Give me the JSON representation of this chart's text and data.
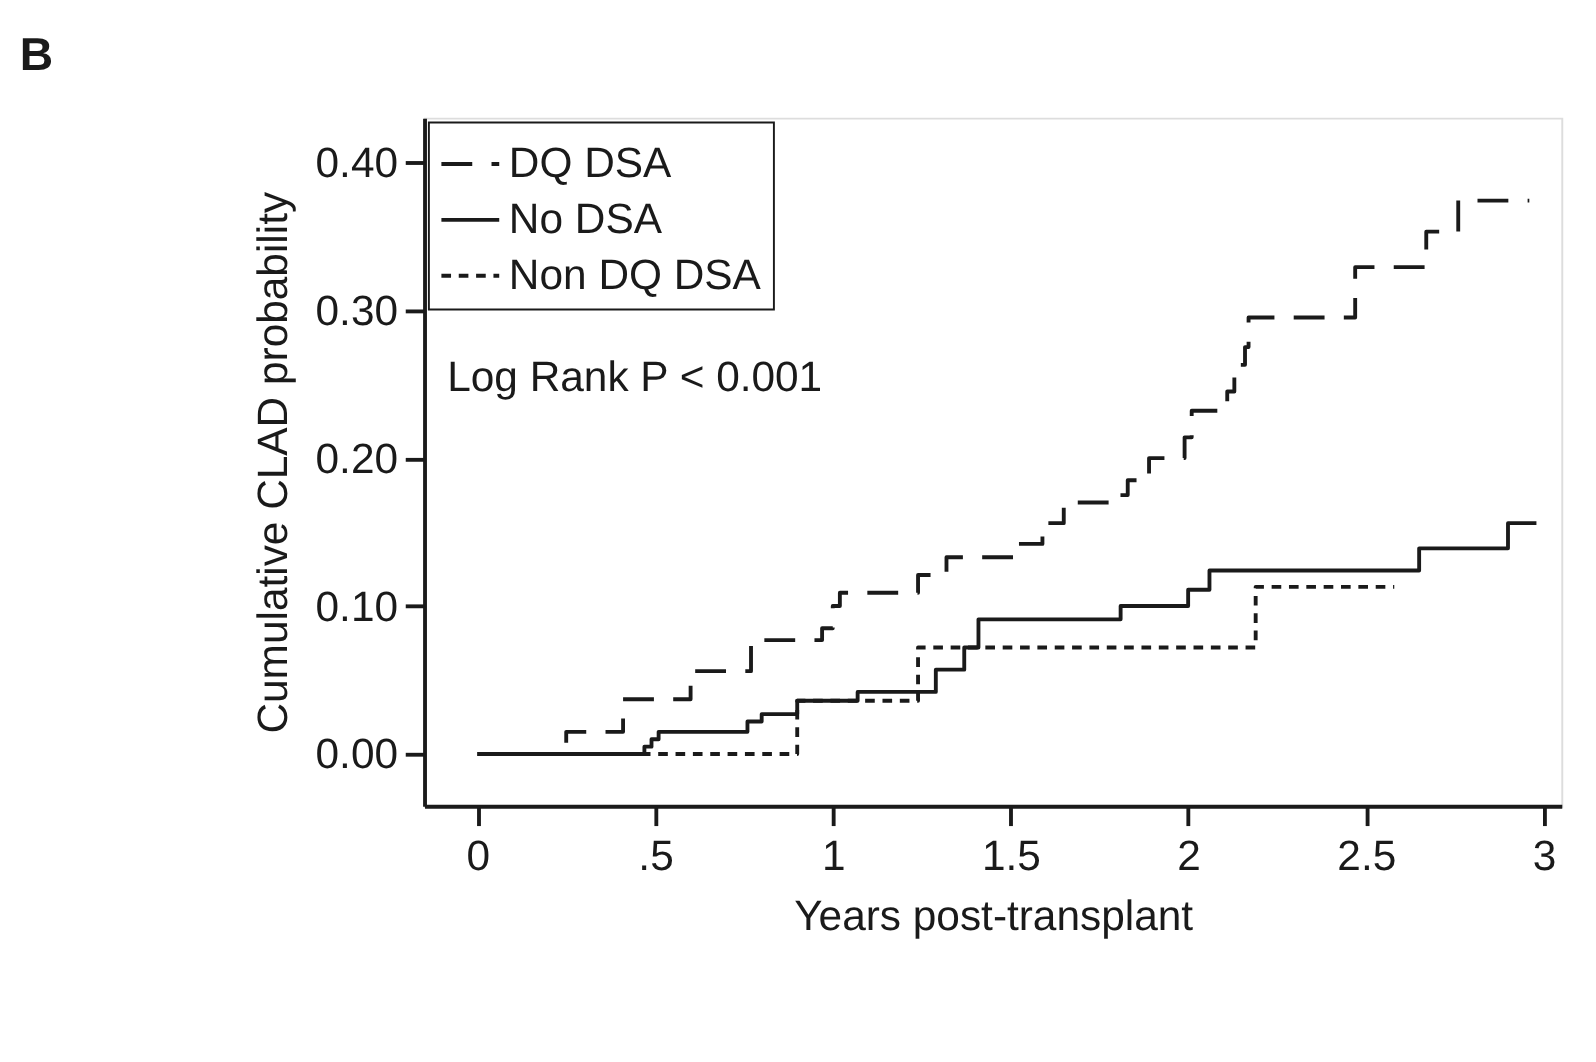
{
  "chart_data": {
    "type": "step",
    "title": "B",
    "xlabel": "Years post-transplant",
    "ylabel": "Cumulative CLAD probability",
    "annotations": [
      "Log Rank P < 0.001"
    ],
    "xlim": [
      -0.15,
      3.05
    ],
    "xticks": [
      0,
      {
        "value": 0.5,
        "label": ".5"
      },
      1,
      1.5,
      2,
      2.5,
      3
    ],
    "ylim": [
      -0.035,
      0.43
    ],
    "yticks": [
      {
        "value": 0,
        "label": "0.00"
      },
      {
        "value": 0.1,
        "label": "0.10"
      },
      {
        "value": 0.2,
        "label": "0.20"
      },
      {
        "value": 0.3,
        "label": "0.30"
      },
      {
        "value": 0.4,
        "label": "0.40"
      }
    ],
    "grid": false,
    "legend": "top left",
    "marker": "none",
    "series": [
      {
        "name": "DQ DSA",
        "color": "#1a1a1a",
        "line_style": "dashed",
        "x": [
          0,
          0.25,
          0.41,
          0.6,
          0.77,
          0.97,
          1.0,
          1.02,
          1.24,
          1.32,
          1.51,
          1.59,
          1.65,
          1.79,
          1.83,
          1.89,
          1.99,
          2.01,
          2.11,
          2.13,
          2.16,
          2.17,
          2.47,
          2.67,
          2.76,
          2.96
        ],
        "values": [
          0,
          0.015,
          0.037,
          0.056,
          0.077,
          0.085,
          0.1,
          0.109,
          0.121,
          0.133,
          0.142,
          0.156,
          0.17,
          0.175,
          0.185,
          0.2,
          0.214,
          0.232,
          0.245,
          0.263,
          0.275,
          0.295,
          0.329,
          0.353,
          0.374,
          0.374
        ]
      },
      {
        "name": "No DSA",
        "color": "#1a1a1a",
        "line_style": "solid",
        "x": [
          0,
          0.47,
          0.49,
          0.51,
          0.76,
          0.8,
          0.9,
          1.07,
          1.29,
          1.37,
          1.41,
          1.81,
          2.0,
          2.06,
          2.65,
          2.9,
          2.98
        ],
        "values": [
          0,
          0.005,
          0.01,
          0.015,
          0.022,
          0.027,
          0.036,
          0.042,
          0.057,
          0.072,
          0.091,
          0.1,
          0.111,
          0.124,
          0.139,
          0.156,
          0.156
        ]
      },
      {
        "name": "Non DQ DSA",
        "color": "#1a1a1a",
        "line_style": "dotted",
        "x": [
          0.46,
          0.9,
          1.24,
          2.19,
          2.58
        ],
        "values": [
          0,
          0.036,
          0.072,
          0.113,
          0.113
        ]
      }
    ]
  }
}
